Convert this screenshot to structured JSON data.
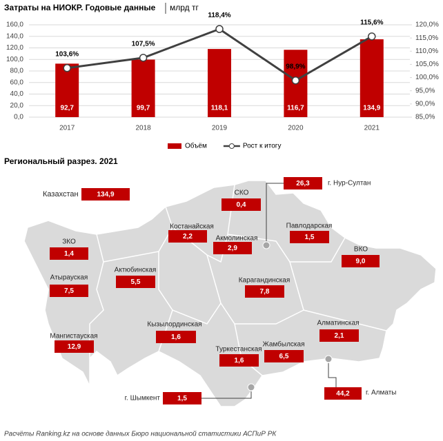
{
  "chart_data": {
    "type": "bar",
    "title": "Затраты на НИОКР. Годовые данные",
    "subtitle": "млрд тг",
    "categories": [
      "2017",
      "2018",
      "2019",
      "2020",
      "2021"
    ],
    "series": [
      {
        "name": "Объём",
        "type": "bar",
        "color": "#c00000",
        "values": [
          92.7,
          99.7,
          118.1,
          116.7,
          134.9
        ],
        "value_labels": [
          "92,7",
          "99,7",
          "118,1",
          "116,7",
          "134,9"
        ]
      },
      {
        "name": "Рост к итогу",
        "type": "line",
        "axis": "y2",
        "color": "#404040",
        "values": [
          103.6,
          107.5,
          118.4,
          98.9,
          115.6
        ],
        "value_labels": [
          "103,6%",
          "107,5%",
          "118,4%",
          "98,9%",
          "115,6%"
        ]
      }
    ],
    "ylim": [
      0,
      160
    ],
    "yticks": [
      {
        "value": 0,
        "label": "0,0"
      },
      {
        "value": 20,
        "label": "20,0"
      },
      {
        "value": 40,
        "label": "40,0"
      },
      {
        "value": 60,
        "label": "60,0"
      },
      {
        "value": 80,
        "label": "80,0"
      },
      {
        "value": 100,
        "label": "100,0"
      },
      {
        "value": 120,
        "label": "120,0"
      },
      {
        "value": 140,
        "label": "140,0"
      },
      {
        "value": 160,
        "label": "160,0"
      }
    ],
    "y2lim": [
      85,
      120
    ],
    "y2ticks": [
      {
        "value": 85,
        "label": "85,0%"
      },
      {
        "value": 90,
        "label": "90,0%"
      },
      {
        "value": 95,
        "label": "95,0%"
      },
      {
        "value": 100,
        "label": "100,0%"
      },
      {
        "value": 105,
        "label": "105,0%"
      },
      {
        "value": 110,
        "label": "110,0%"
      },
      {
        "value": 115,
        "label": "115,0%"
      },
      {
        "value": 120,
        "label": "120,0%"
      }
    ],
    "grid": true,
    "legend": "bottom"
  },
  "map": {
    "title": "Региональный разрез. 2021",
    "regions": [
      {
        "name": "Казахстан",
        "value": "134,9"
      },
      {
        "name": "СКО",
        "value": "0,4"
      },
      {
        "name": "г. Нур-Султан",
        "value": "26,3"
      },
      {
        "name": "Костанайская",
        "value": "2,2"
      },
      {
        "name": "Акмолинская",
        "value": "2,9"
      },
      {
        "name": "Павлодарская",
        "value": "1,5"
      },
      {
        "name": "ЗКО",
        "value": "1,4"
      },
      {
        "name": "ВКО",
        "value": "9,0"
      },
      {
        "name": "Атырауская",
        "value": "7,5"
      },
      {
        "name": "Актюбинская",
        "value": "5,5"
      },
      {
        "name": "Карагандинская",
        "value": "7,8"
      },
      {
        "name": "Кызылординская",
        "value": "1,6"
      },
      {
        "name": "Мангистауская",
        "value": "12,9"
      },
      {
        "name": "Алматинская",
        "value": "2,1"
      },
      {
        "name": "Туркестанская",
        "value": "1,6"
      },
      {
        "name": "Жамбылская",
        "value": "6,5"
      },
      {
        "name": "г. Алматы",
        "value": "44,2"
      },
      {
        "name": "г. Шымкент",
        "value": "1,5"
      }
    ]
  },
  "source": "Расчёты Ranking.kz на основе данных Бюро национальной статистики АСПиР РК"
}
